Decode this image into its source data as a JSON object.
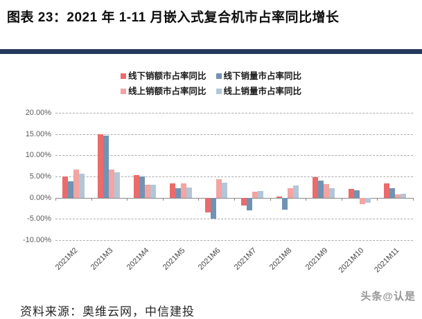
{
  "header": {
    "title": "图表 23：2021 年 1-11 月嵌入式复合机市占率同比增长"
  },
  "footer": {
    "source": "资料来源：奥维云网，中信建投",
    "watermark": "头条@认是"
  },
  "chart_data": {
    "type": "bar",
    "categories": [
      "2021M2",
      "2021M3",
      "2021M4",
      "2021M5",
      "2021M6",
      "2021M7",
      "2021M8",
      "2021M9",
      "2021M10",
      "2021M11"
    ],
    "series": [
      {
        "name": "线下销额市占率同比",
        "color": "#ea6b6c",
        "values": [
          5.0,
          15.0,
          5.3,
          3.4,
          -3.4,
          -1.9,
          0.2,
          4.8,
          2.0,
          3.4
        ]
      },
      {
        "name": "线下销量市占率同比",
        "color": "#7193b3",
        "values": [
          3.9,
          14.6,
          5.0,
          2.3,
          -4.9,
          -3.0,
          -2.8,
          4.0,
          1.7,
          2.3
        ]
      },
      {
        "name": "线上销额市占率同比",
        "color": "#f3a4a3",
        "values": [
          6.6,
          6.7,
          3.1,
          3.3,
          4.3,
          1.4,
          2.2,
          3.2,
          -1.6,
          0.8
        ]
      },
      {
        "name": "线上销量市占率同比",
        "color": "#b2c6d8",
        "values": [
          5.7,
          5.9,
          3.1,
          2.4,
          3.5,
          1.5,
          2.8,
          2.2,
          -1.2,
          1.0
        ]
      }
    ],
    "title": "",
    "xlabel": "",
    "ylabel": "",
    "ylim": [
      -10,
      20
    ],
    "ytick_step": 5,
    "ytick_labels": [
      "20.00%",
      "15.00%",
      "10.00%",
      "5.00%",
      "0.00%",
      "-5.00%",
      "-10.00%"
    ],
    "grid": true,
    "legend_position": "top",
    "legend_rows": [
      [
        0,
        1
      ],
      [
        2,
        3
      ]
    ]
  }
}
